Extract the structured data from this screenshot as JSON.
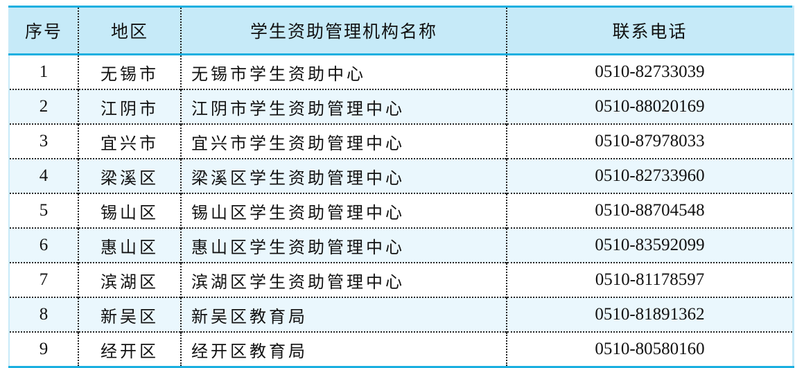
{
  "headers": [
    "序号",
    "地区",
    "学生资助管理机构名称",
    "联系电话"
  ],
  "rows": [
    {
      "index": "1",
      "region": "无锡市",
      "name": "无锡市学生资助中心",
      "phone": "0510-82733039"
    },
    {
      "index": "2",
      "region": "江阴市",
      "name": "江阴市学生资助管理中心",
      "phone": "0510-88020169"
    },
    {
      "index": "3",
      "region": "宜兴市",
      "name": "宜兴市学生资助管理中心",
      "phone": "0510-87978033"
    },
    {
      "index": "4",
      "region": "梁溪区",
      "name": "梁溪区学生资助管理中心",
      "phone": "0510-82733960"
    },
    {
      "index": "5",
      "region": "锡山区",
      "name": "锡山区学生资助管理中心",
      "phone": "0510-88704548"
    },
    {
      "index": "6",
      "region": "惠山区",
      "name": "惠山区学生资助管理中心",
      "phone": "0510-83592099"
    },
    {
      "index": "7",
      "region": "滨湖区",
      "name": "滨湖区学生资助管理中心",
      "phone": "0510-81178597"
    },
    {
      "index": "8",
      "region": "新吴区",
      "name": "新吴区教育局",
      "phone": "0510-81891362"
    },
    {
      "index": "9",
      "region": "经开区",
      "name": "经开区教育局",
      "phone": "0510-80580160"
    }
  ],
  "colors": {
    "accent": "#1aafe0",
    "header_bg": "#c6eaf8",
    "stripe_bg": "#eaf7fd"
  }
}
